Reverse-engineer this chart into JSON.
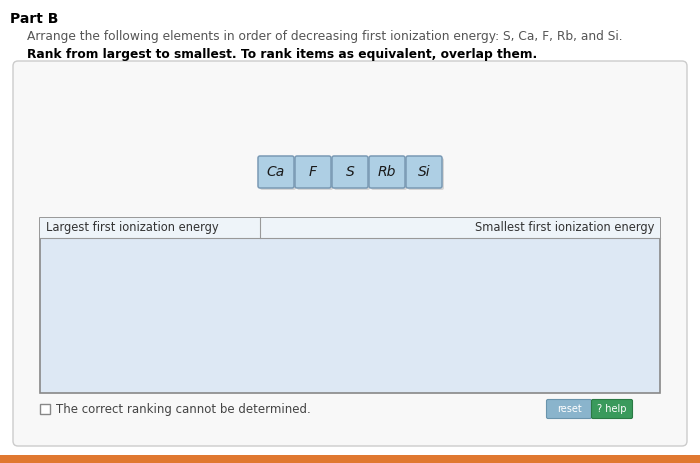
{
  "title": "Part B",
  "question_text": "Arrange the following elements in order of decreasing first ionization energy: S, Ca, F, Rb, and Si.",
  "instruction_text": "Rank from largest to smallest. To rank items as equivalent, overlap them.",
  "elements": [
    "Ca",
    "F",
    "S",
    "Rb",
    "Si"
  ],
  "label_left": "Largest first ionization energy",
  "label_right": "Smallest first ionization energy",
  "checkbox_text": "The correct ranking cannot be determined.",
  "page_bg": "#ffffff",
  "outer_box_bg": "#f8f8f8",
  "outer_box_border": "#cccccc",
  "inner_box_bg": "#dde8f4",
  "inner_box_border": "#888888",
  "element_bg": "#aecfe4",
  "element_border": "#7a9ab5",
  "element_shadow": "#999999",
  "reset_btn_color": "#8ab4cc",
  "reset_btn_border": "#6a94ac",
  "help_btn_color": "#3a9a5c",
  "help_btn_border": "#2a7a44",
  "title_color": "#000000",
  "question_color": "#555555",
  "instruction_color": "#000000",
  "label_color": "#333333",
  "checkbox_color": "#444444",
  "orange_bar": "#e07830"
}
